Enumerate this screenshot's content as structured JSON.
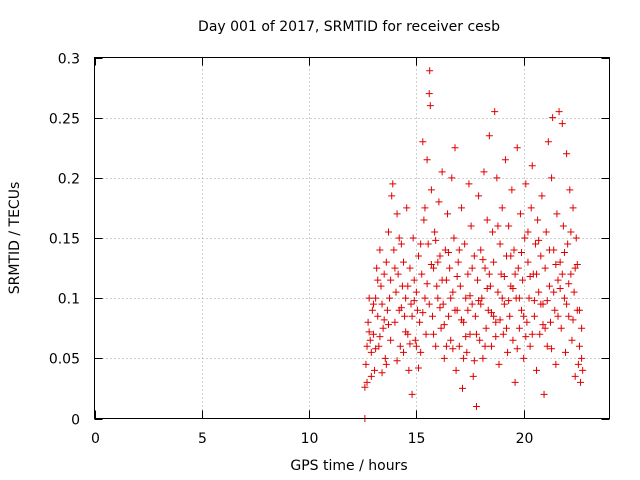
{
  "chart_data": {
    "type": "scatter",
    "title": "Day 001 of 2017, SRMTID for receiver cesb",
    "xlabel": "GPS time / hours",
    "ylabel": "SRMTID / TECUs",
    "xlim": [
      0,
      24
    ],
    "ylim": [
      0,
      0.3
    ],
    "xticks": [
      0,
      5,
      10,
      15,
      20
    ],
    "xtick_labels": [
      "0",
      "5",
      "10",
      "15",
      "20"
    ],
    "yticks": [
      0,
      0.05,
      0.1,
      0.15,
      0.2,
      0.25,
      0.3
    ],
    "ytick_labels": [
      "0",
      "0.05",
      "0.1",
      "0.15",
      "0.2",
      "0.25",
      "0.3"
    ],
    "grid": true,
    "marker": "+",
    "color": "#e00000",
    "series": [
      {
        "name": "SRMTID",
        "points": [
          [
            12.6,
            0.0
          ],
          [
            12.6,
            0.026
          ],
          [
            12.65,
            0.045
          ],
          [
            12.7,
            0.06
          ],
          [
            12.75,
            0.08
          ],
          [
            12.8,
            0.1
          ],
          [
            12.85,
            0.065
          ],
          [
            12.9,
            0.055
          ],
          [
            12.95,
            0.09
          ],
          [
            13.0,
            0.07
          ],
          [
            13.05,
            0.04
          ],
          [
            13.1,
            0.1
          ],
          [
            13.15,
            0.125
          ],
          [
            13.2,
            0.085
          ],
          [
            13.25,
            0.06
          ],
          [
            13.3,
            0.14
          ],
          [
            13.35,
            0.11
          ],
          [
            13.4,
            0.095
          ],
          [
            13.45,
            0.075
          ],
          [
            13.5,
            0.12
          ],
          [
            13.55,
            0.05
          ],
          [
            13.6,
            0.13
          ],
          [
            13.65,
            0.09
          ],
          [
            13.7,
            0.155
          ],
          [
            13.75,
            0.1
          ],
          [
            13.8,
            0.115
          ],
          [
            13.85,
            0.185
          ],
          [
            13.9,
            0.195
          ],
          [
            13.95,
            0.14
          ],
          [
            14.0,
            0.08
          ],
          [
            14.05,
            0.105
          ],
          [
            14.1,
            0.17
          ],
          [
            14.15,
            0.12
          ],
          [
            14.2,
            0.09
          ],
          [
            14.25,
            0.06
          ],
          [
            14.3,
            0.145
          ],
          [
            14.35,
            0.11
          ],
          [
            14.4,
            0.13
          ],
          [
            14.45,
            0.085
          ],
          [
            14.5,
            0.1
          ],
          [
            14.55,
            0.175
          ],
          [
            14.6,
            0.07
          ],
          [
            14.65,
            0.04
          ],
          [
            14.7,
            0.125
          ],
          [
            14.75,
            0.095
          ],
          [
            14.8,
            0.02
          ],
          [
            14.85,
            0.15
          ],
          [
            14.9,
            0.115
          ],
          [
            14.95,
            0.065
          ],
          [
            15.0,
            0.105
          ],
          [
            15.05,
            0.09
          ],
          [
            15.1,
            0.135
          ],
          [
            15.15,
            0.08
          ],
          [
            15.2,
            0.055
          ],
          [
            15.25,
            0.12
          ],
          [
            15.3,
            0.23
          ],
          [
            15.35,
            0.165
          ],
          [
            15.4,
            0.1
          ],
          [
            15.45,
            0.07
          ],
          [
            15.5,
            0.215
          ],
          [
            15.55,
            0.145
          ],
          [
            15.6,
            0.27
          ],
          [
            15.62,
            0.289
          ],
          [
            15.65,
            0.26
          ],
          [
            15.7,
            0.19
          ],
          [
            15.75,
            0.085
          ],
          [
            15.8,
            0.125
          ],
          [
            15.85,
            0.155
          ],
          [
            15.9,
            0.06
          ],
          [
            15.95,
            0.11
          ],
          [
            16.0,
            0.1
          ],
          [
            16.05,
            0.18
          ],
          [
            16.1,
            0.135
          ],
          [
            16.15,
            0.075
          ],
          [
            16.2,
            0.205
          ],
          [
            16.25,
            0.095
          ],
          [
            16.3,
            0.05
          ],
          [
            16.35,
            0.14
          ],
          [
            16.4,
            0.115
          ],
          [
            16.45,
            0.17
          ],
          [
            16.5,
            0.085
          ],
          [
            16.55,
            0.125
          ],
          [
            16.6,
            0.065
          ],
          [
            16.65,
            0.2
          ],
          [
            16.7,
            0.105
          ],
          [
            16.75,
            0.15
          ],
          [
            16.8,
            0.225
          ],
          [
            16.85,
            0.04
          ],
          [
            16.9,
            0.09
          ],
          [
            16.95,
            0.13
          ],
          [
            17.0,
            0.06
          ],
          [
            17.05,
            0.11
          ],
          [
            17.1,
            0.175
          ],
          [
            17.15,
            0.025
          ],
          [
            17.2,
            0.08
          ],
          [
            17.25,
            0.145
          ],
          [
            17.3,
            0.1
          ],
          [
            17.35,
            0.055
          ],
          [
            17.4,
            0.12
          ],
          [
            17.45,
            0.195
          ],
          [
            17.5,
            0.07
          ],
          [
            17.55,
            0.16
          ],
          [
            17.6,
            0.095
          ],
          [
            17.65,
            0.035
          ],
          [
            17.7,
            0.135
          ],
          [
            17.75,
            0.085
          ],
          [
            17.8,
            0.01
          ],
          [
            17.85,
            0.115
          ],
          [
            17.9,
            0.185
          ],
          [
            17.95,
            0.065
          ],
          [
            18.0,
            0.14
          ],
          [
            18.05,
            0.1
          ],
          [
            18.1,
            0.05
          ],
          [
            18.15,
            0.205
          ],
          [
            18.2,
            0.125
          ],
          [
            18.25,
            0.075
          ],
          [
            18.3,
            0.165
          ],
          [
            18.35,
            0.09
          ],
          [
            18.4,
            0.235
          ],
          [
            18.45,
            0.11
          ],
          [
            18.5,
            0.06
          ],
          [
            18.55,
            0.155
          ],
          [
            18.6,
            0.13
          ],
          [
            18.65,
            0.255
          ],
          [
            18.7,
            0.08
          ],
          [
            18.75,
            0.2
          ],
          [
            18.8,
            0.105
          ],
          [
            18.85,
            0.045
          ],
          [
            18.9,
            0.145
          ],
          [
            18.95,
            0.12
          ],
          [
            19.0,
            0.175
          ],
          [
            19.05,
            0.07
          ],
          [
            19.1,
            0.095
          ],
          [
            19.15,
            0.215
          ],
          [
            19.2,
            0.135
          ],
          [
            19.25,
            0.055
          ],
          [
            19.3,
            0.16
          ],
          [
            19.35,
            0.085
          ],
          [
            19.4,
            0.11
          ],
          [
            19.45,
            0.19
          ],
          [
            19.5,
            0.065
          ],
          [
            19.55,
            0.14
          ],
          [
            19.6,
            0.03
          ],
          [
            19.65,
            0.1
          ],
          [
            19.7,
            0.225
          ],
          [
            19.75,
            0.125
          ],
          [
            19.8,
            0.075
          ],
          [
            19.85,
            0.17
          ],
          [
            19.9,
            0.09
          ],
          [
            19.95,
            0.115
          ],
          [
            20.0,
            0.05
          ],
          [
            20.05,
            0.15
          ],
          [
            20.1,
            0.195
          ],
          [
            20.15,
            0.08
          ],
          [
            20.2,
            0.13
          ],
          [
            20.25,
            0.1
          ],
          [
            20.3,
            0.06
          ],
          [
            20.35,
            0.175
          ],
          [
            20.4,
            0.21
          ],
          [
            20.45,
            0.12
          ],
          [
            20.5,
            0.085
          ],
          [
            20.55,
            0.145
          ],
          [
            20.6,
            0.04
          ],
          [
            20.65,
            0.165
          ],
          [
            20.7,
            0.105
          ],
          [
            20.75,
            0.07
          ],
          [
            20.8,
            0.135
          ],
          [
            20.85,
            0.185
          ],
          [
            20.9,
            0.095
          ],
          [
            20.95,
            0.02
          ],
          [
            21.0,
            0.125
          ],
          [
            21.05,
            0.155
          ],
          [
            21.1,
            0.06
          ],
          [
            21.15,
            0.23
          ],
          [
            21.2,
            0.11
          ],
          [
            21.25,
            0.08
          ],
          [
            21.3,
            0.2
          ],
          [
            21.35,
            0.25
          ],
          [
            21.4,
            0.14
          ],
          [
            21.45,
            0.09
          ],
          [
            21.5,
            0.045
          ],
          [
            21.55,
            0.17
          ],
          [
            21.6,
            0.115
          ],
          [
            21.65,
            0.255
          ],
          [
            21.7,
            0.13
          ],
          [
            21.75,
            0.075
          ],
          [
            21.8,
            0.245
          ],
          [
            21.85,
            0.16
          ],
          [
            21.9,
            0.1
          ],
          [
            21.95,
            0.055
          ],
          [
            22.0,
            0.22
          ],
          [
            22.05,
            0.145
          ],
          [
            22.1,
            0.085
          ],
          [
            22.15,
            0.19
          ],
          [
            22.2,
            0.12
          ],
          [
            22.25,
            0.065
          ],
          [
            22.3,
            0.175
          ],
          [
            22.35,
            0.105
          ],
          [
            22.4,
            0.035
          ],
          [
            22.45,
            0.15
          ],
          [
            22.5,
            0.09
          ],
          [
            22.55,
            0.045
          ],
          [
            22.6,
            0.06
          ],
          [
            22.65,
            0.03
          ],
          [
            22.7,
            0.05
          ],
          [
            22.75,
            0.04
          ],
          [
            12.7,
            0.03
          ],
          [
            12.8,
            0.072
          ],
          [
            12.9,
            0.035
          ],
          [
            13.0,
            0.095
          ],
          [
            13.2,
            0.115
          ],
          [
            13.3,
            0.068
          ],
          [
            13.5,
            0.082
          ],
          [
            13.6,
            0.045
          ],
          [
            13.8,
            0.065
          ],
          [
            14.0,
            0.125
          ],
          [
            14.2,
            0.15
          ],
          [
            14.4,
            0.055
          ],
          [
            14.6,
            0.11
          ],
          [
            14.8,
            0.085
          ],
          [
            15.0,
            0.06
          ],
          [
            15.2,
            0.145
          ],
          [
            15.4,
            0.175
          ],
          [
            15.6,
            0.095
          ],
          [
            15.8,
            0.07
          ],
          [
            16.0,
            0.13
          ],
          [
            16.2,
            0.115
          ],
          [
            16.4,
            0.06
          ],
          [
            16.6,
            0.1
          ],
          [
            16.8,
            0.09
          ],
          [
            17.0,
            0.14
          ],
          [
            17.2,
            0.05
          ],
          [
            17.4,
            0.09
          ],
          [
            17.6,
            0.125
          ],
          [
            17.8,
            0.07
          ],
          [
            18.0,
            0.095
          ],
          [
            18.2,
            0.06
          ],
          [
            18.4,
            0.12
          ],
          [
            18.6,
            0.085
          ],
          [
            18.8,
            0.16
          ],
          [
            19.0,
            0.1
          ],
          [
            19.2,
            0.075
          ],
          [
            19.4,
            0.135
          ],
          [
            19.6,
            0.12
          ],
          [
            19.8,
            0.1
          ],
          [
            20.0,
            0.085
          ],
          [
            20.2,
            0.155
          ],
          [
            20.4,
            0.07
          ],
          [
            20.6,
            0.12
          ],
          [
            20.8,
            0.095
          ],
          [
            21.0,
            0.075
          ],
          [
            21.2,
            0.14
          ],
          [
            21.4,
            0.105
          ],
          [
            21.6,
            0.085
          ],
          [
            21.8,
            0.12
          ],
          [
            22.0,
            0.095
          ],
          [
            22.2,
            0.155
          ],
          [
            22.4,
            0.125
          ],
          [
            22.6,
            0.09
          ],
          [
            22.7,
            0.075
          ],
          [
            13.1,
            0.058
          ],
          [
            13.4,
            0.038
          ],
          [
            13.7,
            0.078
          ],
          [
            14.1,
            0.048
          ],
          [
            14.3,
            0.092
          ],
          [
            14.5,
            0.072
          ],
          [
            14.7,
            0.062
          ],
          [
            14.9,
            0.098
          ],
          [
            15.1,
            0.042
          ],
          [
            15.3,
            0.088
          ],
          [
            15.5,
            0.112
          ],
          [
            15.7,
            0.128
          ],
          [
            15.9,
            0.148
          ],
          [
            16.1,
            0.092
          ],
          [
            16.3,
            0.078
          ],
          [
            16.5,
            0.138
          ],
          [
            16.7,
            0.058
          ],
          [
            16.9,
            0.118
          ],
          [
            17.1,
            0.082
          ],
          [
            17.3,
            0.068
          ],
          [
            17.5,
            0.102
          ],
          [
            17.7,
            0.048
          ],
          [
            17.9,
            0.098
          ],
          [
            18.1,
            0.132
          ],
          [
            18.3,
            0.108
          ],
          [
            18.5,
            0.088
          ],
          [
            18.7,
            0.068
          ],
          [
            18.9,
            0.082
          ],
          [
            19.1,
            0.118
          ],
          [
            19.3,
            0.098
          ],
          [
            19.5,
            0.108
          ],
          [
            19.7,
            0.058
          ],
          [
            19.9,
            0.138
          ],
          [
            20.1,
            0.068
          ],
          [
            20.3,
            0.118
          ],
          [
            20.5,
            0.098
          ],
          [
            20.7,
            0.148
          ],
          [
            20.9,
            0.078
          ],
          [
            21.1,
            0.098
          ],
          [
            21.3,
            0.058
          ],
          [
            21.5,
            0.128
          ],
          [
            21.7,
            0.108
          ],
          [
            21.9,
            0.138
          ],
          [
            22.1,
            0.112
          ],
          [
            22.3,
            0.082
          ],
          [
            22.5,
            0.128
          ]
        ]
      }
    ]
  }
}
